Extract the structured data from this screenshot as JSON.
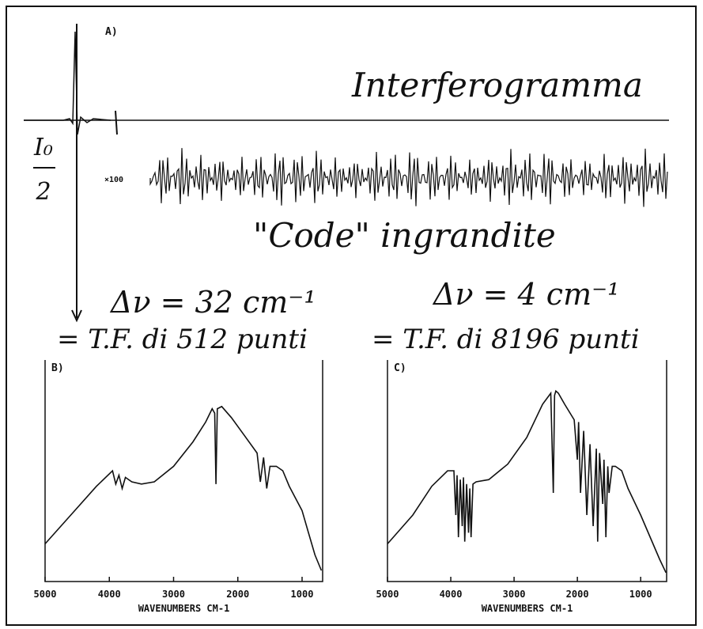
{
  "figure": {
    "label": "A)",
    "title": "Interferogramma",
    "y_label_top": "I₀",
    "y_label_bottom": "2",
    "scale": "×100",
    "annotations": [
      "\"Code\" ingrandite",
      "Δν = 32 cm⁻¹",
      "= T.F. di 512 punti",
      "Δν = 4 cm⁻¹",
      "= T.F. di 8196 punti"
    ]
  },
  "chart_data": [
    {
      "type": "line",
      "title": "B)",
      "xlabel": "WAVENUMBERS CM-1",
      "color": "#111111",
      "xlim": [
        5000,
        680
      ],
      "ylim": [
        0,
        100
      ],
      "xticks": [
        5000,
        4000,
        3000,
        2000,
        1000
      ],
      "x": [
        5000,
        4600,
        4200,
        3950,
        3900,
        3850,
        3800,
        3750,
        3650,
        3500,
        3300,
        3000,
        2700,
        2500,
        2400,
        2360,
        2340,
        2320,
        2250,
        2100,
        1900,
        1700,
        1650,
        1600,
        1550,
        1500,
        1400,
        1300,
        1200,
        1000,
        900,
        800,
        700
      ],
      "values": [
        17,
        30,
        43,
        50,
        44,
        48,
        42,
        47,
        45,
        44,
        45,
        52,
        63,
        72,
        78,
        76,
        44,
        78,
        79,
        74,
        66,
        58,
        45,
        56,
        42,
        52,
        52,
        50,
        43,
        32,
        22,
        12,
        5
      ]
    },
    {
      "type": "line",
      "title": "C)",
      "xlabel": "WAVENUMBERS CM-1",
      "color": "#111111",
      "xlim": [
        5000,
        590
      ],
      "ylim": [
        0,
        100
      ],
      "xticks": [
        5000,
        4000,
        3000,
        2000,
        1000
      ],
      "x": [
        5000,
        4600,
        4300,
        4050,
        3950,
        3920,
        3900,
        3880,
        3850,
        3820,
        3800,
        3780,
        3750,
        3720,
        3700,
        3680,
        3650,
        3600,
        3400,
        3100,
        2800,
        2550,
        2420,
        2380,
        2360,
        2340,
        2300,
        2200,
        2050,
        2000,
        1980,
        1950,
        1900,
        1850,
        1800,
        1750,
        1700,
        1680,
        1650,
        1600,
        1580,
        1550,
        1520,
        1500,
        1450,
        1400,
        1300,
        1200,
        1000,
        850,
        700,
        600
      ],
      "values": [
        17,
        30,
        43,
        50,
        50,
        30,
        48,
        20,
        46,
        25,
        47,
        18,
        44,
        22,
        42,
        20,
        44,
        45,
        46,
        53,
        65,
        80,
        85,
        40,
        84,
        86,
        85,
        80,
        73,
        55,
        72,
        40,
        68,
        30,
        62,
        25,
        60,
        18,
        58,
        35,
        55,
        20,
        52,
        40,
        52,
        52,
        50,
        42,
        30,
        20,
        10,
        4
      ]
    }
  ]
}
